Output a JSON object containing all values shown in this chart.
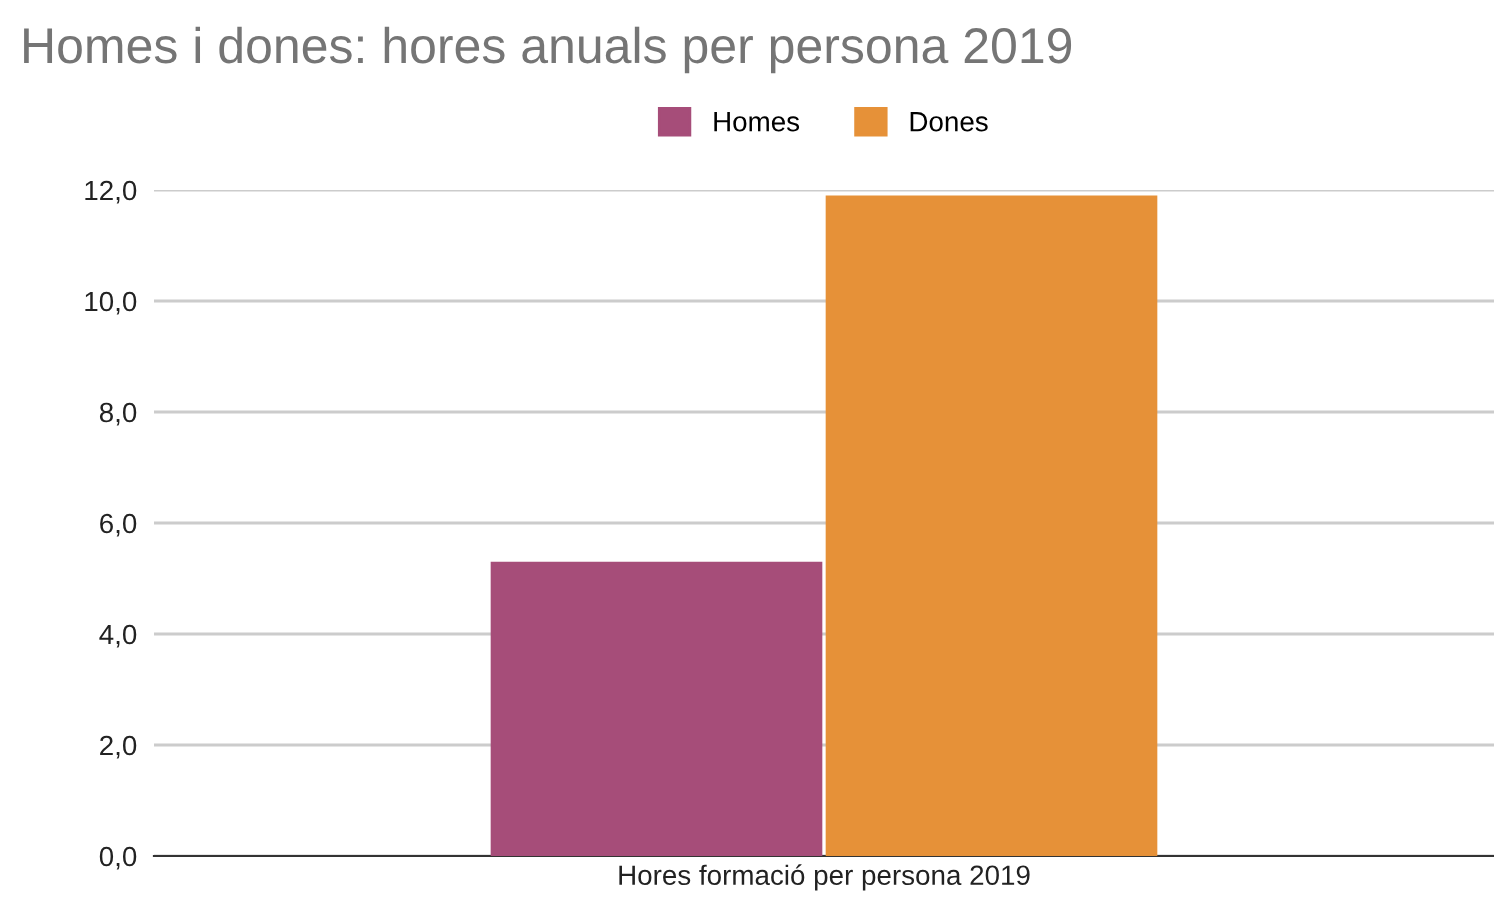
{
  "chart_data": {
    "type": "bar",
    "title": "Homes i dones: hores anuals per persona 2019",
    "categories": [
      "Hores formació per persona 2019"
    ],
    "series": [
      {
        "name": "Homes",
        "color": "#a64d79",
        "values": [
          5.3
        ]
      },
      {
        "name": "Dones",
        "color": "#e69138",
        "values": [
          11.9
        ]
      }
    ],
    "ylim": [
      0,
      12
    ],
    "yticks": [
      {
        "value": 0,
        "label": "0,0"
      },
      {
        "value": 2,
        "label": "2,0"
      },
      {
        "value": 4,
        "label": "4,0"
      },
      {
        "value": 6,
        "label": "6,0"
      },
      {
        "value": 8,
        "label": "8,0"
      },
      {
        "value": 10,
        "label": "10,0"
      },
      {
        "value": 12,
        "label": "12,0"
      }
    ],
    "grid": "y",
    "legend": "top"
  }
}
